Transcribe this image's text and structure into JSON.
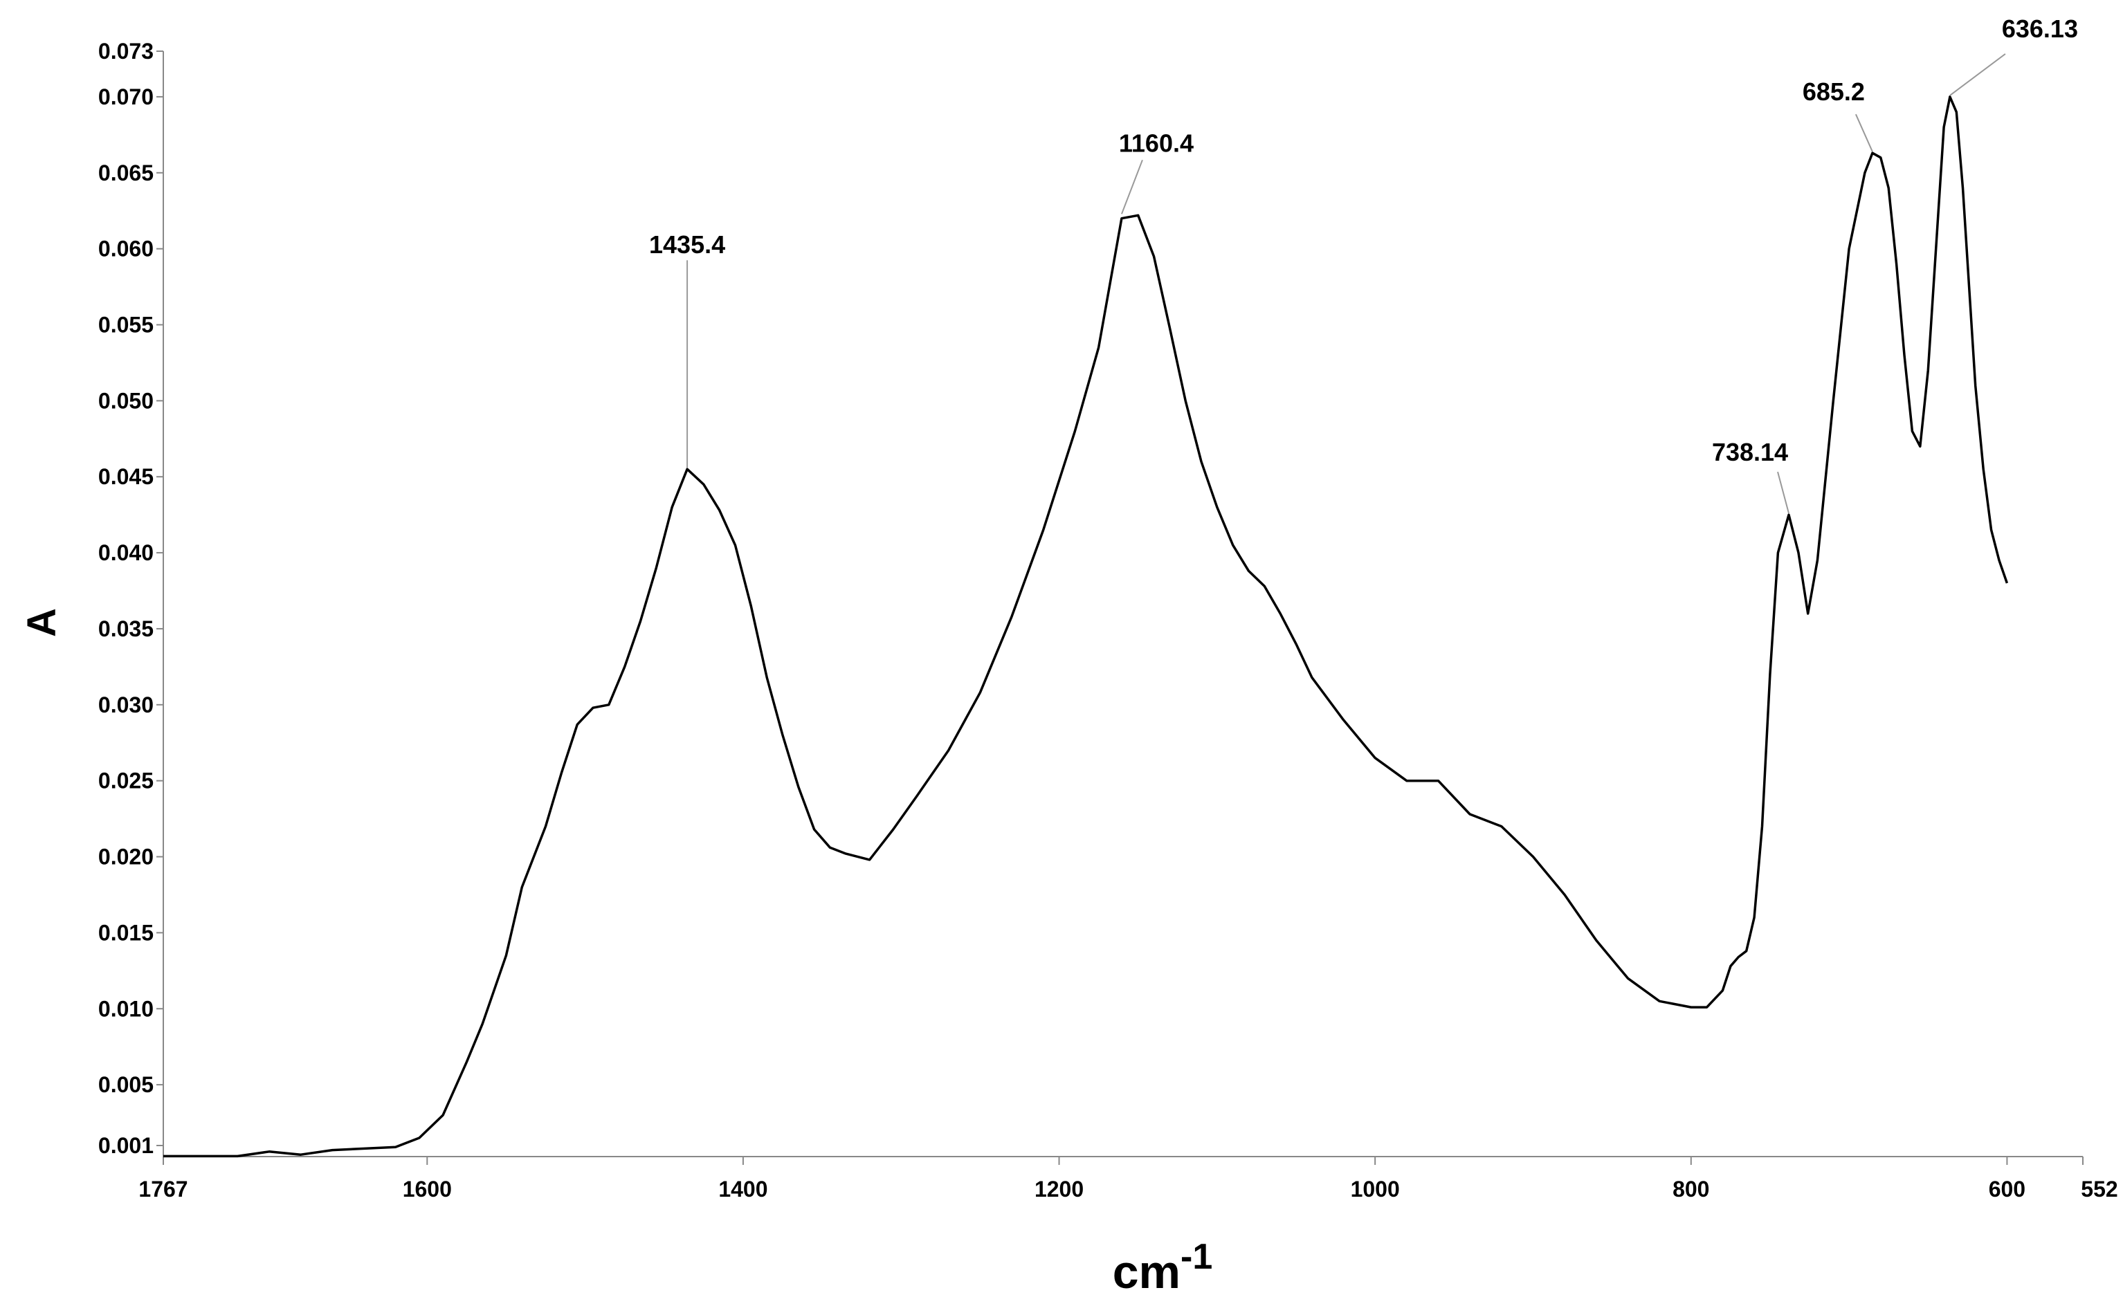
{
  "chart_data": {
    "type": "line",
    "title": "",
    "xlabel": "cm",
    "xlabel_superscript": "-1",
    "ylabel": "A",
    "xlim": [
      1767,
      552
    ],
    "ylim": [
      0.001,
      0.073
    ],
    "x_reversed": true,
    "grid": false,
    "x_ticks": [
      {
        "value": 1767,
        "label": "1767"
      },
      {
        "value": 1600,
        "label": "1600"
      },
      {
        "value": 1400,
        "label": "1400"
      },
      {
        "value": 1200,
        "label": "1200"
      },
      {
        "value": 1000,
        "label": "1000"
      },
      {
        "value": 800,
        "label": "800"
      },
      {
        "value": 600,
        "label": "600"
      },
      {
        "value": 552,
        "label": "552"
      }
    ],
    "y_ticks": [
      {
        "value": 0.001,
        "label": "0.001"
      },
      {
        "value": 0.005,
        "label": "0.005"
      },
      {
        "value": 0.01,
        "label": "0.010"
      },
      {
        "value": 0.015,
        "label": "0.015"
      },
      {
        "value": 0.02,
        "label": "0.020"
      },
      {
        "value": 0.025,
        "label": "0.025"
      },
      {
        "value": 0.03,
        "label": "0.030"
      },
      {
        "value": 0.035,
        "label": "0.035"
      },
      {
        "value": 0.04,
        "label": "0.040"
      },
      {
        "value": 0.045,
        "label": "0.045"
      },
      {
        "value": 0.05,
        "label": "0.050"
      },
      {
        "value": 0.055,
        "label": "0.055"
      },
      {
        "value": 0.06,
        "label": "0.060"
      },
      {
        "value": 0.065,
        "label": "0.065"
      },
      {
        "value": 0.07,
        "label": "0.070"
      },
      {
        "value": 0.073,
        "label": "0.073"
      }
    ],
    "series": [
      {
        "color": "#000000",
        "x": [
          1767,
          1720,
          1700,
          1680,
          1660,
          1620,
          1605,
          1590,
          1575,
          1565,
          1550,
          1540,
          1525,
          1515,
          1505,
          1495,
          1485,
          1475,
          1465,
          1455,
          1445,
          1435.4,
          1425,
          1415,
          1405,
          1395,
          1385,
          1375,
          1365,
          1355,
          1345,
          1335,
          1320,
          1305,
          1290,
          1270,
          1250,
          1230,
          1210,
          1190,
          1175,
          1160.4,
          1150,
          1140,
          1130,
          1120,
          1110,
          1100,
          1090,
          1080,
          1070,
          1060,
          1050,
          1040,
          1020,
          1000,
          980,
          960,
          940,
          920,
          900,
          880,
          860,
          840,
          820,
          800,
          790,
          780,
          775,
          770,
          765,
          760,
          755,
          750,
          745,
          738.14,
          732,
          726,
          720,
          710,
          700,
          690,
          685.2,
          680,
          675,
          670,
          665,
          660,
          655,
          650,
          645,
          640,
          636.13,
          632,
          628,
          624,
          620,
          615,
          610,
          605,
          600
        ],
        "y": [
          0.0003,
          0.0003,
          0.0006,
          0.0004,
          0.0007,
          0.0009,
          0.0015,
          0.003,
          0.0065,
          0.009,
          0.0135,
          0.018,
          0.022,
          0.0255,
          0.0287,
          0.0298,
          0.03,
          0.0325,
          0.0355,
          0.039,
          0.043,
          0.0455,
          0.0445,
          0.0428,
          0.0405,
          0.0365,
          0.0318,
          0.028,
          0.0246,
          0.0218,
          0.0206,
          0.0202,
          0.0198,
          0.0218,
          0.024,
          0.027,
          0.0308,
          0.0358,
          0.0415,
          0.048,
          0.0535,
          0.062,
          0.0622,
          0.0595,
          0.0548,
          0.05,
          0.046,
          0.043,
          0.0405,
          0.0388,
          0.0378,
          0.036,
          0.034,
          0.0318,
          0.029,
          0.0265,
          0.025,
          0.025,
          0.0228,
          0.022,
          0.02,
          0.0175,
          0.0145,
          0.012,
          0.0105,
          0.0101,
          0.0101,
          0.0112,
          0.0128,
          0.0134,
          0.0138,
          0.016,
          0.022,
          0.032,
          0.04,
          0.0425,
          0.04,
          0.036,
          0.0395,
          0.05,
          0.06,
          0.065,
          0.0663,
          0.066,
          0.064,
          0.059,
          0.053,
          0.048,
          0.047,
          0.052,
          0.06,
          0.068,
          0.07,
          0.069,
          0.064,
          0.0575,
          0.051,
          0.0455,
          0.0415,
          0.0395,
          0.038
        ]
      }
    ],
    "annotations": [
      {
        "label": "1435.4",
        "x": 1435.4,
        "y": 0.0455
      },
      {
        "label": "1160.4",
        "x": 1160.4,
        "y": 0.0622
      },
      {
        "label": "738.14",
        "x": 738.14,
        "y": 0.0425
      },
      {
        "label": "685.2",
        "x": 685.2,
        "y": 0.0663
      },
      {
        "label": "636.13",
        "x": 636.13,
        "y": 0.07
      }
    ]
  }
}
